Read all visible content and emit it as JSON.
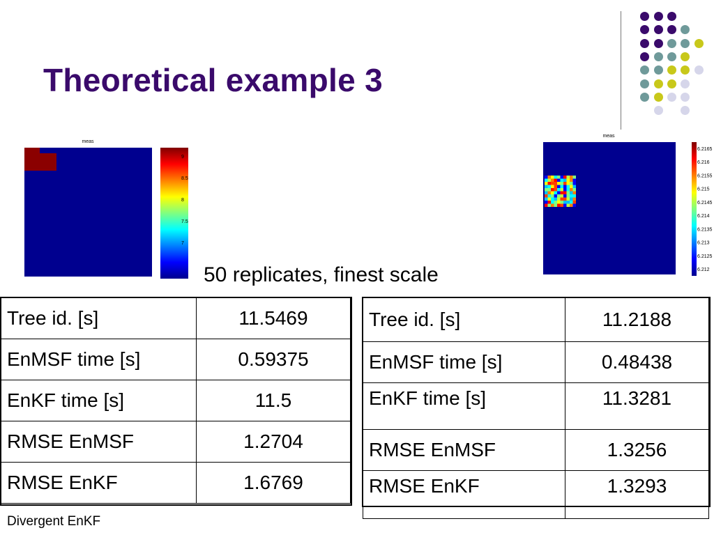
{
  "title": "Theoretical example 3",
  "subtitle": "50 replicates, finest scale",
  "note": "Divergent EnKF",
  "left_figure": {
    "title": "meas",
    "colorbar_ticks": [
      "9",
      "8.5",
      "8",
      "7.5",
      "7"
    ]
  },
  "right_figure": {
    "title": "meas",
    "colorbar_ticks": [
      "6.2165",
      "6.216",
      "6.2155",
      "6.215",
      "6.2145",
      "6.214",
      "6.2135",
      "6.213",
      "6.2125",
      "6.212"
    ]
  },
  "left_table": {
    "rows": [
      {
        "label": "Tree id. [s]",
        "value": "11.5469"
      },
      {
        "label": "EnMSF time [s]",
        "value": "0.59375"
      },
      {
        "label": "EnKF time [s]",
        "value": "11.5"
      },
      {
        "label": "RMSE EnMSF",
        "value": "1.2704"
      },
      {
        "label": "RMSE EnKF",
        "value": "1.6769"
      }
    ]
  },
  "right_table": {
    "rows": [
      {
        "label": "Tree id. [s]",
        "value": "11.2188"
      },
      {
        "label": "EnMSF time [s]",
        "value": "0.48438"
      },
      {
        "label": "EnKF time [s]",
        "value": "11.3281"
      },
      {
        "label": "RMSE EnMSF",
        "value": "1.3256"
      },
      {
        "label": "RMSE EnKF",
        "value": "1.3293"
      }
    ]
  },
  "colors": {
    "title": "#3a0a6b",
    "dot_purple": "#3a0a6b",
    "dot_teal": "#6f9a9a",
    "dot_yellow": "#c8c81a",
    "dot_lavender": "#d6d6ea",
    "field_blue": "#00008f",
    "patch_red": "#8b0000"
  }
}
